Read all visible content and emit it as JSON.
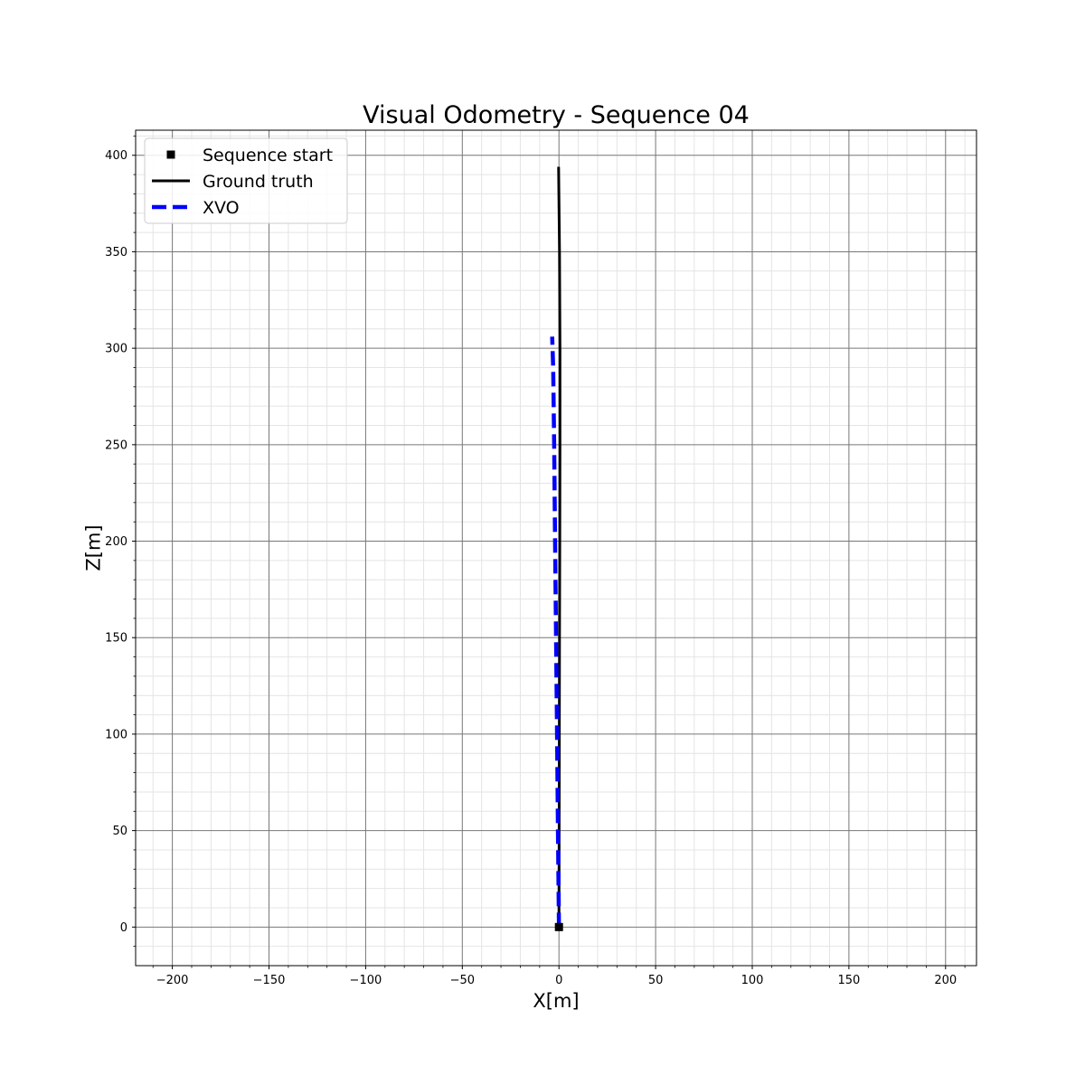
{
  "chart_data": {
    "type": "line",
    "title": "Visual Odometry - Sequence 04",
    "xlabel": "X[m]",
    "ylabel": "Z[m]",
    "xlim": [
      -219,
      216
    ],
    "ylim": [
      -20,
      413
    ],
    "xticks": [
      -200,
      -150,
      -100,
      -50,
      0,
      50,
      100,
      150,
      200
    ],
    "yticks": [
      0,
      50,
      100,
      150,
      200,
      250,
      300,
      350,
      400
    ],
    "xtick_labels": [
      "−200",
      "−150",
      "−100",
      "−50",
      "0",
      "50",
      "100",
      "150",
      "200"
    ],
    "ytick_labels": [
      "0",
      "50",
      "100",
      "150",
      "200",
      "250",
      "300",
      "350",
      "400"
    ],
    "grid": true,
    "minor_grid": true,
    "legend_position": "top-left",
    "series": [
      {
        "name": "Sequence start",
        "kind": "marker",
        "color": "#000000",
        "x": [
          0
        ],
        "y": [
          0
        ]
      },
      {
        "name": "Ground truth",
        "kind": "line",
        "style": "solid",
        "color": "#000000",
        "x": [
          0.0,
          0.1,
          0.2,
          0.3,
          0.4,
          0.5,
          0.5,
          0.3,
          -0.2
        ],
        "y": [
          0,
          50,
          100,
          150,
          200,
          250,
          300,
          350,
          394
        ]
      },
      {
        "name": "XVO",
        "kind": "line",
        "style": "dashed",
        "color": "#0000ff",
        "x": [
          0.0,
          -0.5,
          -1.0,
          -1.5,
          -2.0,
          -2.5,
          -3.0,
          -3.5
        ],
        "y": [
          0,
          50,
          100,
          150,
          200,
          250,
          290,
          306
        ]
      }
    ]
  }
}
